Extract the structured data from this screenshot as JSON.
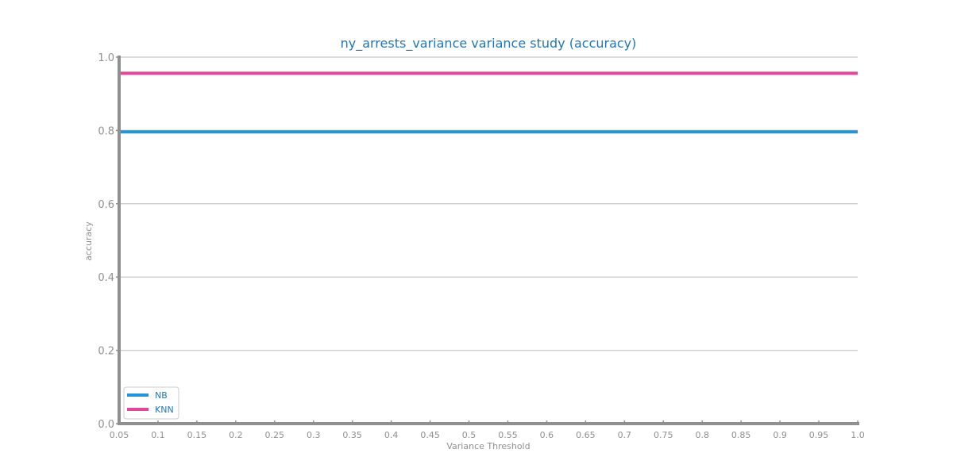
{
  "chart_data": {
    "type": "line",
    "title": "ny_arrests_variance variance study (accuracy)",
    "xlabel": "Variance Threshold",
    "ylabel": "accuracy",
    "x": [
      0.05,
      0.1,
      0.15,
      0.2,
      0.25,
      0.3,
      0.35,
      0.4,
      0.45,
      0.5,
      0.55,
      0.6,
      0.65,
      0.7,
      0.75,
      0.8,
      0.85,
      0.9,
      0.95,
      1.0
    ],
    "x_tick_labels": [
      "0.05",
      "0.1",
      "0.15",
      "0.2",
      "0.25",
      "0.3",
      "0.35",
      "0.4",
      "0.45",
      "0.5",
      "0.55",
      "0.6",
      "0.65",
      "0.7",
      "0.75",
      "0.8",
      "0.85",
      "0.9",
      "0.95",
      "1.0"
    ],
    "y_tick_labels": [
      "0.0",
      "0.2",
      "0.4",
      "0.6",
      "0.8",
      "1.0"
    ],
    "y_ticks": [
      0.0,
      0.2,
      0.4,
      0.6,
      0.8,
      1.0
    ],
    "xlim": [
      0.05,
      1.0
    ],
    "ylim": [
      0.0,
      1.0
    ],
    "grid": "horizontal",
    "legend_position": "lower-left",
    "colors": {
      "title": "#1f77b4",
      "axis": "#909090",
      "tick_text": "#909090",
      "grid": "#d0d0d0"
    },
    "series": [
      {
        "name": "NB",
        "color": "#2495d6",
        "values": [
          0.796,
          0.796,
          0.796,
          0.796,
          0.796,
          0.796,
          0.796,
          0.796,
          0.796,
          0.796,
          0.796,
          0.796,
          0.796,
          0.796,
          0.796,
          0.796,
          0.796,
          0.796,
          0.796,
          0.796
        ]
      },
      {
        "name": "KNN",
        "color": "#e0499a",
        "values": [
          0.956,
          0.956,
          0.956,
          0.956,
          0.956,
          0.956,
          0.956,
          0.956,
          0.956,
          0.956,
          0.956,
          0.956,
          0.956,
          0.956,
          0.956,
          0.956,
          0.956,
          0.956,
          0.956,
          0.956
        ]
      }
    ]
  }
}
